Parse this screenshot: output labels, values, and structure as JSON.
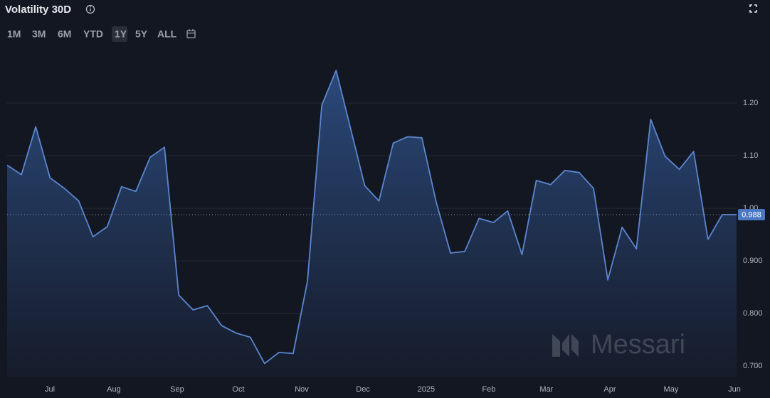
{
  "chart_data": {
    "type": "area",
    "title": "Volatility 30D",
    "range_buttons": [
      "1M",
      "3M",
      "6M",
      "YTD",
      "1Y",
      "5Y",
      "ALL"
    ],
    "selected_range": "1Y",
    "watermark": "Messari",
    "color": "#5b86cf",
    "grid": true,
    "last_value": 0.988,
    "values": [
      1.082,
      1.064,
      1.155,
      1.058,
      1.038,
      1.014,
      0.946,
      0.965,
      1.041,
      1.032,
      1.097,
      1.116,
      0.835,
      0.807,
      0.815,
      0.777,
      0.763,
      0.755,
      0.705,
      0.726,
      0.724,
      0.862,
      1.196,
      1.262,
      1.153,
      1.043,
      1.014,
      1.124,
      1.136,
      1.134,
      1.012,
      0.915,
      0.918,
      0.981,
      0.973,
      0.995,
      0.912,
      1.053,
      1.045,
      1.072,
      1.068,
      1.038,
      0.864,
      0.964,
      0.923,
      1.169,
      1.099,
      1.074,
      1.108,
      0.941,
      0.988,
      0.988
    ],
    "xlim": [
      0,
      51
    ],
    "xticks": [
      {
        "value": 2.99,
        "label": "Jul"
      },
      {
        "value": 7.46,
        "label": "Aug"
      },
      {
        "value": 11.89,
        "label": "Sep"
      },
      {
        "value": 16.17,
        "label": "Oct"
      },
      {
        "value": 20.6,
        "label": "Nov"
      },
      {
        "value": 24.88,
        "label": "Dec"
      },
      {
        "value": 29.3,
        "label": "2025"
      },
      {
        "value": 33.68,
        "label": "Feb"
      },
      {
        "value": 37.71,
        "label": "Mar"
      },
      {
        "value": 42.14,
        "label": "Apr"
      },
      {
        "value": 46.42,
        "label": "May"
      },
      {
        "value": 50.85,
        "label": "Jun"
      }
    ],
    "ylim": [
      0.68,
      1.3
    ],
    "yticks": [
      {
        "value": 0.7,
        "label": "0.700"
      },
      {
        "value": 0.8,
        "label": "0.800"
      },
      {
        "value": 0.9,
        "label": "0.900"
      },
      {
        "value": 1.0,
        "label": "1.00"
      },
      {
        "value": 1.1,
        "label": "1.10"
      },
      {
        "value": 1.2,
        "label": "1.20"
      }
    ]
  }
}
